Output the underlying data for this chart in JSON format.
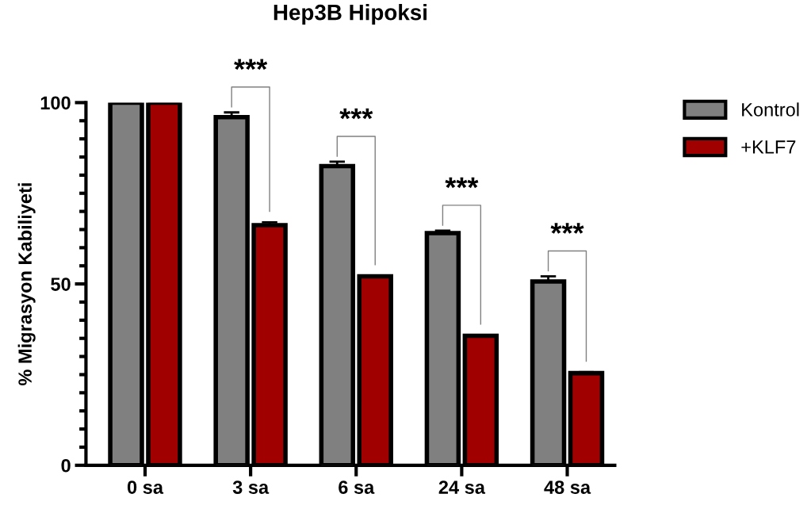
{
  "chart_data": {
    "type": "bar",
    "title": "Hep3B Hipoksi",
    "ylabel": "% Migrasyon Kabiliyeti",
    "categories": [
      "0 sa",
      "3 sa",
      "6 sa",
      "24 sa",
      "48 sa"
    ],
    "series": [
      {
        "name": "Kontrol",
        "color": "#808080",
        "values": [
          100,
          96,
          82.5,
          64,
          50.7
        ],
        "errors": [
          null,
          [
            96,
            97.3
          ],
          [
            82.5,
            83.7
          ],
          [
            64,
            64.7
          ],
          [
            50.7,
            52.1
          ]
        ]
      },
      {
        "name": "+KLF7",
        "color": "#a00000",
        "values": [
          100,
          66.2,
          52.1,
          35.7,
          25.4
        ],
        "errors": [
          null,
          [
            66.2,
            67
          ],
          [
            52.1,
            52.3
          ],
          [
            35.7,
            35.9
          ],
          [
            25.4,
            25.7
          ]
        ]
      }
    ],
    "ylim": [
      0,
      100
    ],
    "yticks": [
      0,
      50,
      100
    ],
    "grid": false,
    "legend": "right",
    "annotations": [
      "***",
      "***",
      "***",
      "***"
    ]
  }
}
